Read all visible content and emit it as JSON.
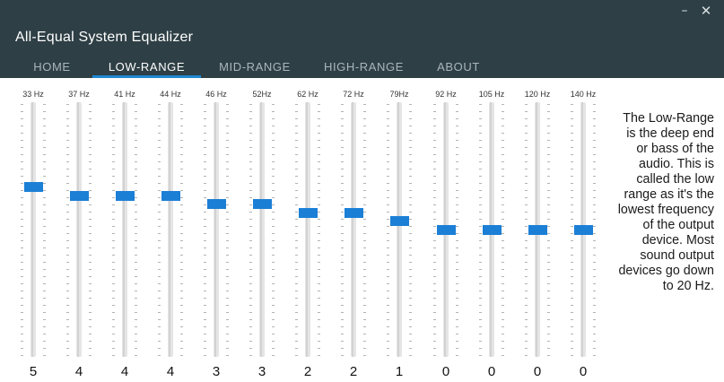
{
  "window": {
    "title": "All-Equal System Equalizer",
    "minimize_glyph": "–",
    "close_glyph": "✕"
  },
  "tabs": [
    {
      "label": "HOME",
      "active": false
    },
    {
      "label": "LOW-RANGE",
      "active": true
    },
    {
      "label": "MID-RANGE",
      "active": false
    },
    {
      "label": "HIGH-RANGE",
      "active": false
    },
    {
      "label": "ABOUT",
      "active": false
    }
  ],
  "bands": [
    {
      "freq": "33 Hz",
      "value": "5"
    },
    {
      "freq": "37 Hz",
      "value": "4"
    },
    {
      "freq": "41 Hz",
      "value": "4"
    },
    {
      "freq": "44 Hz",
      "value": "4"
    },
    {
      "freq": "46 Hz",
      "value": "3"
    },
    {
      "freq": "52Hz",
      "value": "3"
    },
    {
      "freq": "62 Hz",
      "value": "2"
    },
    {
      "freq": "72 Hz",
      "value": "2"
    },
    {
      "freq": "79Hz",
      "value": "1"
    },
    {
      "freq": "92 Hz",
      "value": "0"
    },
    {
      "freq": "105 Hz",
      "value": "0"
    },
    {
      "freq": "120 Hz",
      "value": "0"
    },
    {
      "freq": "140 Hz",
      "value": "0"
    }
  ],
  "description": "The Low-Range is the deep end or bass of the audio. This is called the low range as it's the lowest frequency of the output device. Most sound output devices go down to 20 Hz.",
  "colors": {
    "header_bg": "#2e3f45",
    "accent": "#1f88d3",
    "slider_thumb": "#1b7fd6"
  }
}
